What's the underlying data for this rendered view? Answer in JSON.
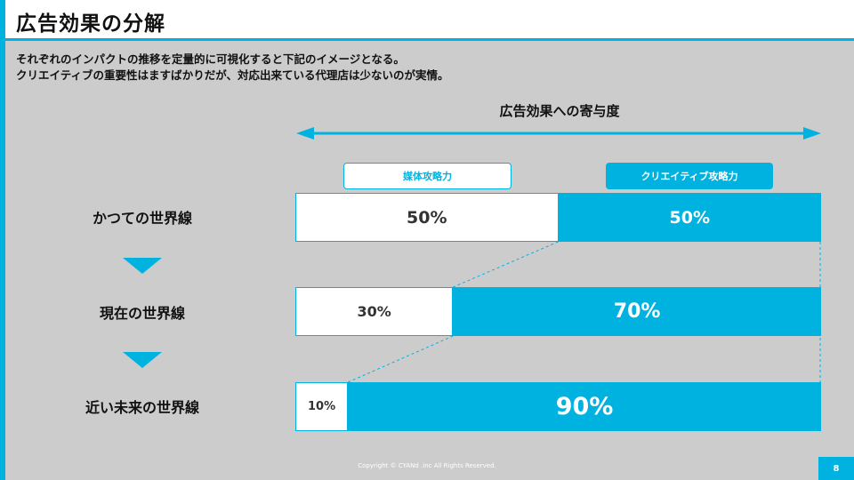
{
  "slide": {
    "title": "広告効果の分解",
    "description": [
      "それぞれのインパクトの推移を定量的に可視化すると下記のイメージとなる。",
      "クリエイティブの重要性はますばかりだが、対応出来ている代理店は少ないのが実情。"
    ],
    "footer": "Copyright © CYANd .inc All Rights Reserved.",
    "page_number": "8"
  },
  "colors": {
    "accent": "#00b2e0",
    "background": "#cccccc",
    "media_segment": "#ffffff"
  },
  "chart_data": {
    "type": "bar",
    "orientation": "horizontal",
    "stacked": true,
    "normalized_percent": true,
    "title": "",
    "xlabel": "広告効果への寄与度",
    "ylabel": "",
    "xlim": [
      0,
      100
    ],
    "categories": [
      "かつての世界線",
      "現在の世界線",
      "近い未来の世界線"
    ],
    "series": [
      {
        "name": "媒体攻略力",
        "values": [
          50,
          30,
          10
        ],
        "labels": [
          "50%",
          "30%",
          "10%"
        ]
      },
      {
        "name": "クリエイティブ攻略力",
        "values": [
          50,
          70,
          90
        ],
        "labels": [
          "50%",
          "70%",
          "90%"
        ]
      }
    ],
    "legend": "top",
    "grid": false
  }
}
